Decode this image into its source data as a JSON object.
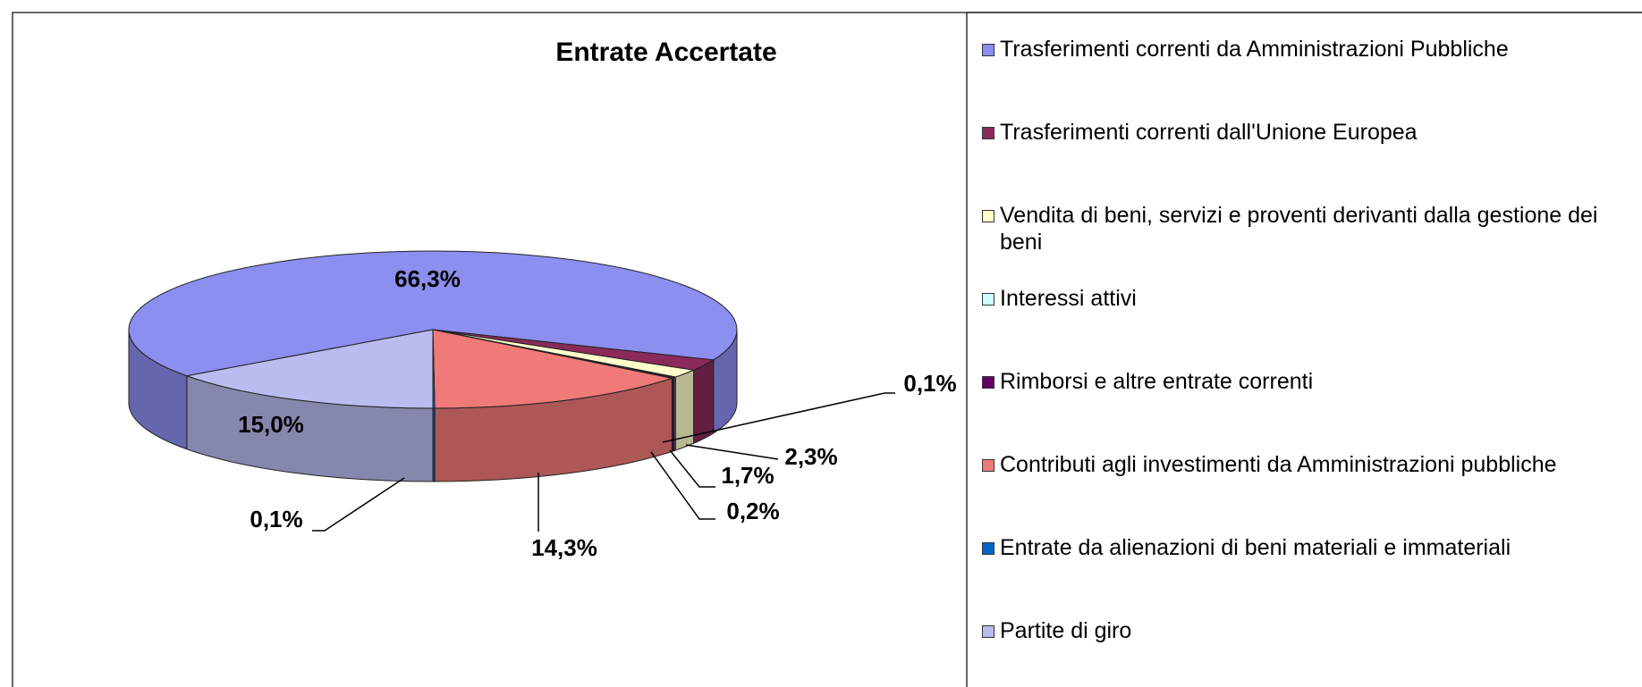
{
  "chart_data": {
    "type": "pie",
    "title": "Entrate Accertate",
    "categories": [
      "Trasferimenti correnti da Amministrazioni Pubbliche",
      "Trasferimenti correnti dall'Unione Europea",
      "Vendita di beni, servizi e proventi derivanti dalla gestione dei beni",
      "Interessi attivi",
      "Rimborsi e altre entrate correnti",
      "Contributi agli investimenti da Amministrazioni pubbliche",
      "Entrate da alienazioni di beni materiali e immateriali",
      "Partite di giro"
    ],
    "values": [
      66.3,
      2.3,
      1.7,
      0.1,
      0.2,
      14.3,
      0.1,
      15.0
    ],
    "value_labels": [
      "66,3%",
      "2,3%",
      "1,7%",
      "0,1%",
      "0,2%",
      "14,3%",
      "0,1%",
      "15,0%"
    ],
    "colors": [
      "#8c8ef0",
      "#8b2a5a",
      "#ffffcc",
      "#ccffff",
      "#660066",
      "#f07a78",
      "#0066cc",
      "#babcf0"
    ]
  }
}
